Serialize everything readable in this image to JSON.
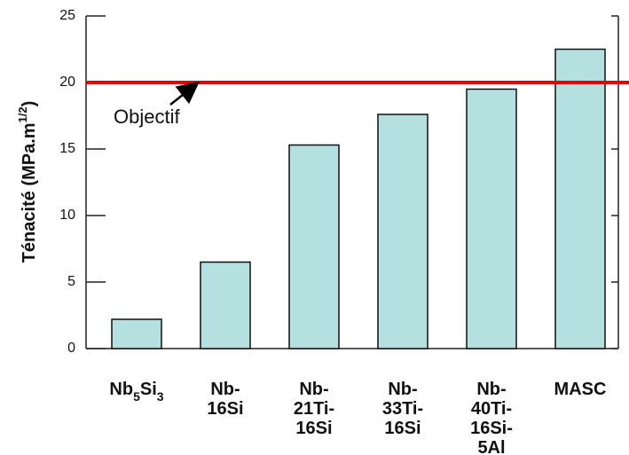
{
  "chart_data": {
    "type": "bar",
    "y_label": "Ténacité (MPa.m1/2)",
    "categories": [
      "Nb5Si3",
      "Nb-16Si",
      "Nb-21Ti-16Si",
      "Nb-33Ti-16Si",
      "Nb-40Ti-16Si-5Al",
      "MASC"
    ],
    "values": [
      2.2,
      6.5,
      15.3,
      17.6,
      19.5,
      22.5
    ],
    "color": "#b4e0e0",
    "ylim": [
      0,
      25
    ],
    "yticks": [
      0,
      5,
      10,
      15,
      20,
      25
    ],
    "target": {
      "value": 20,
      "label": "Objectif",
      "color": "#e8000b"
    }
  }
}
